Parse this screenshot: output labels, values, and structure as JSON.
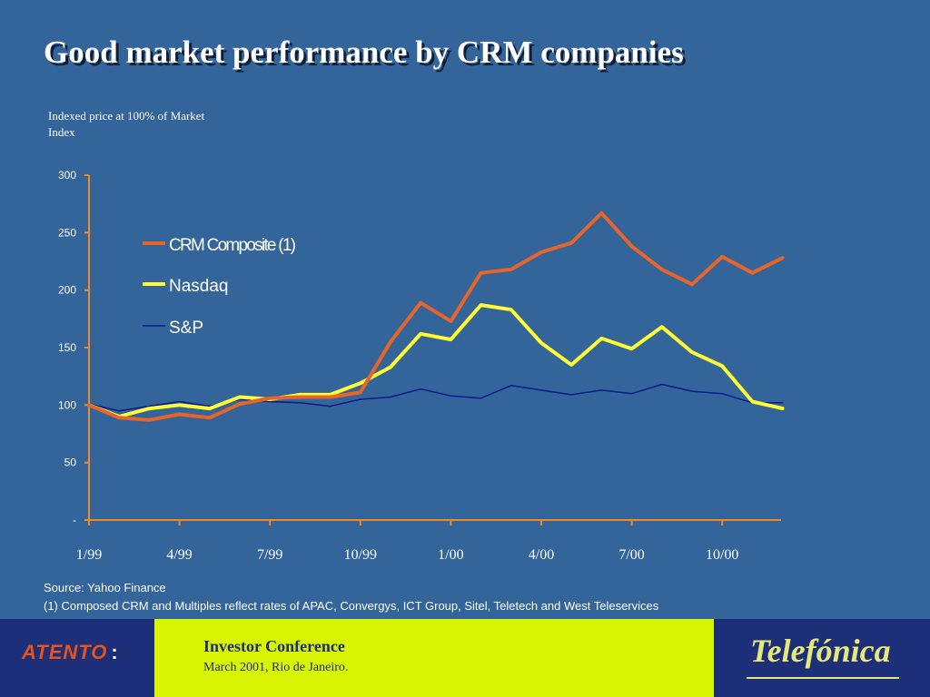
{
  "page": {
    "title": "Good market performance by CRM companies",
    "source": "Source: Yahoo Finance",
    "footnote": "(1) Composed CRM and Multiples reflect rates of APAC, Convergys, ICT Group, Sitel, Teletech and West Teleservices"
  },
  "footer": {
    "left_logo": "ATENTO",
    "left_logo_suffix": ":",
    "conference_title": "Investor Conference",
    "conference_subtitle": "March 2001, Rio de Janeiro.",
    "right_logo": "Telefónica"
  },
  "colors": {
    "background": "#33649a",
    "crm": "#e8652a",
    "nasdaq": "#ffff33",
    "sp": "#0a1a8c",
    "axis": "#f08a24",
    "footer_dark": "#1e2f7a",
    "footer_yellow": "#d8f402"
  },
  "chart_data": {
    "type": "line",
    "ylabel": "Indexed price at 100% of Market Index",
    "ylim": [
      0,
      300
    ],
    "y_ticks": [
      {
        "value": 300,
        "label": "300"
      },
      {
        "value": 250,
        "label": "250"
      },
      {
        "value": 200,
        "label": "200"
      },
      {
        "value": 150,
        "label": "150"
      },
      {
        "value": 100,
        "label": "100"
      },
      {
        "value": 50,
        "label": "50"
      },
      {
        "value": 0,
        "label": "-"
      }
    ],
    "x_tick_labels": [
      "1/99",
      "4/99",
      "7/99",
      "10/99",
      "1/00",
      "4/00",
      "7/00",
      "10/00"
    ],
    "x_tick_index": [
      0,
      3,
      6,
      9,
      12,
      15,
      18,
      21
    ],
    "n_points": 24,
    "legend_position": "top-left",
    "series": [
      {
        "name": "CRM Composite (1)",
        "color": "#e8652a",
        "width": 4,
        "values": [
          100,
          89,
          87,
          92,
          89,
          101,
          106,
          107,
          107,
          111,
          155,
          189,
          173,
          215,
          218,
          233,
          241,
          267,
          238,
          218,
          205,
          229,
          215,
          228
        ]
      },
      {
        "name": "Nasdaq",
        "color": "#ffff33",
        "width": 4,
        "values": [
          100,
          90,
          97,
          100,
          97,
          107,
          105,
          109,
          109,
          119,
          133,
          162,
          157,
          187,
          183,
          154,
          135,
          158,
          149,
          168,
          146,
          134,
          103,
          97
        ]
      },
      {
        "name": "S&P",
        "color": "#0a1a8c",
        "width": 1.5,
        "values": [
          101,
          95,
          99,
          103,
          99,
          105,
          103,
          102,
          99,
          105,
          107,
          114,
          108,
          106,
          117,
          113,
          109,
          113,
          110,
          118,
          112,
          110,
          102,
          102
        ]
      }
    ]
  }
}
